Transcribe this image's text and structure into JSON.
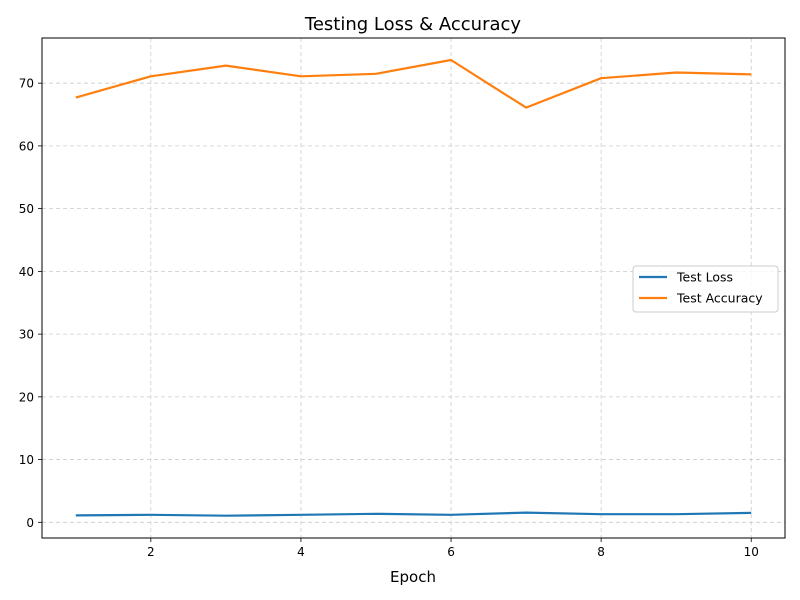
{
  "chart_data": {
    "type": "line",
    "title": "Testing Loss & Accuracy",
    "xlabel": "Epoch",
    "ylabel": "",
    "x": [
      1,
      2,
      3,
      4,
      5,
      6,
      7,
      8,
      9,
      10
    ],
    "xlim": [
      0.55,
      10.45
    ],
    "ylim": [
      -2.5,
      77.2
    ],
    "xticks": [
      2,
      4,
      6,
      8,
      10
    ],
    "yticks": [
      0,
      10,
      20,
      30,
      40,
      50,
      60,
      70
    ],
    "grid": true,
    "legend_position": "center-right",
    "series": [
      {
        "name": "Test Loss",
        "color": "#1f77b4",
        "values": [
          1.1,
          1.2,
          1.05,
          1.2,
          1.35,
          1.2,
          1.55,
          1.3,
          1.3,
          1.5
        ]
      },
      {
        "name": "Test Accuracy",
        "color": "#ff7f0e",
        "values": [
          67.7,
          71.1,
          72.8,
          71.1,
          71.5,
          73.7,
          66.1,
          70.8,
          71.7,
          71.4
        ]
      }
    ]
  }
}
